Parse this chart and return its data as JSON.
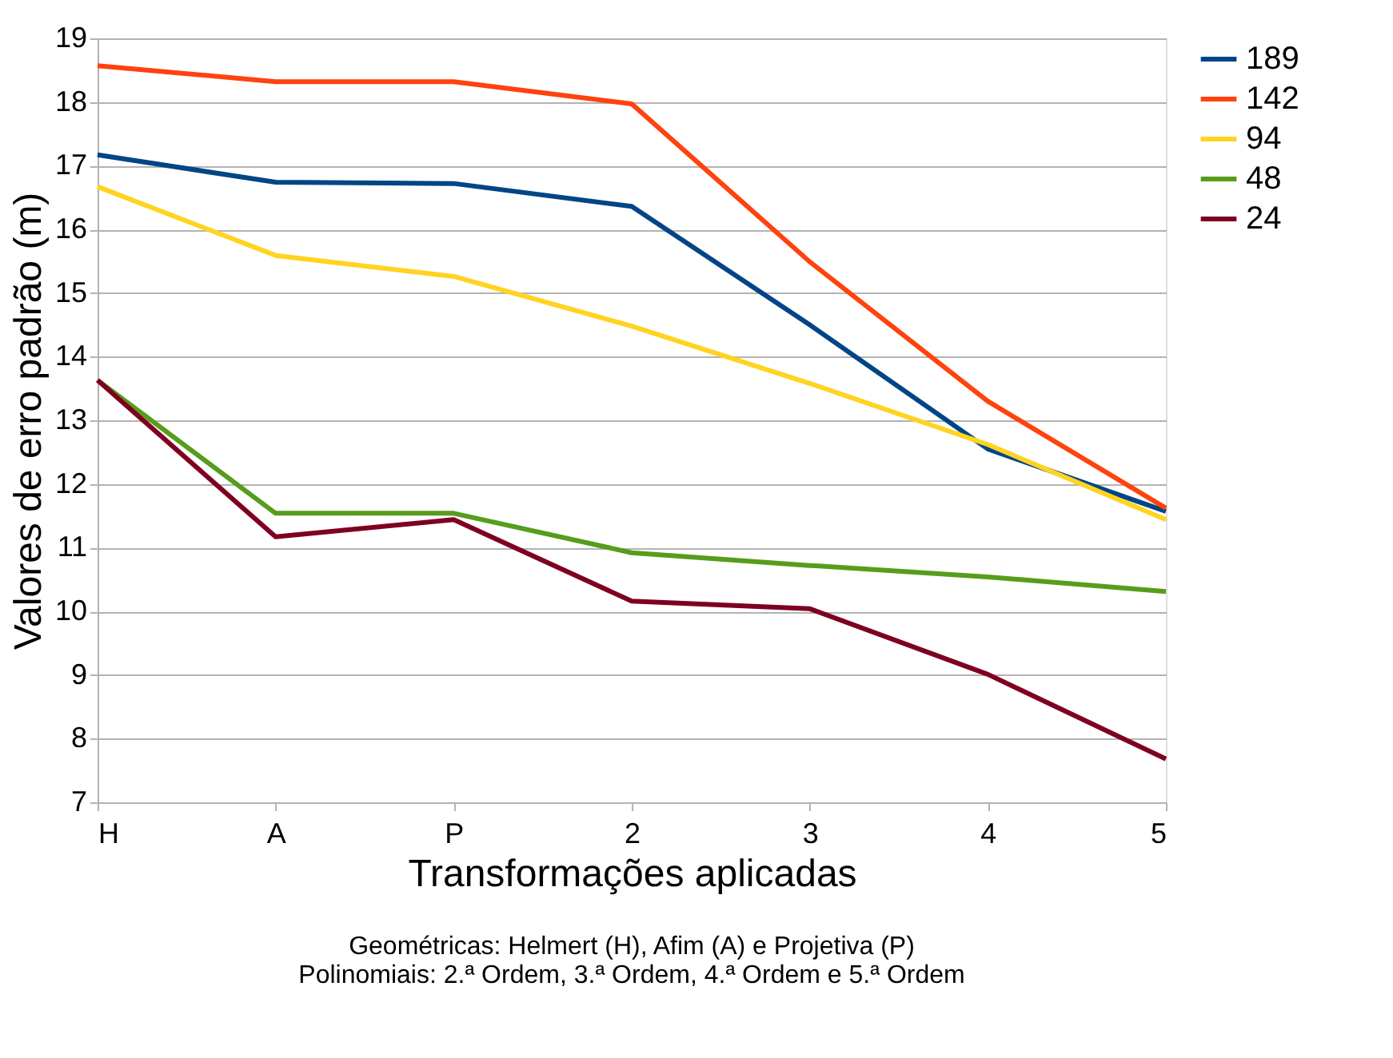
{
  "chart_data": {
    "type": "line",
    "xlabel": "Transformações aplicadas",
    "ylabel": "Valores de erro padrão (m)",
    "categories": [
      "H",
      "A",
      "P",
      "2",
      "3",
      "4",
      "5"
    ],
    "series": [
      {
        "name": "189",
        "color": "#004586",
        "values": [
          17.17,
          16.74,
          16.72,
          16.36,
          14.5,
          12.55,
          11.57
        ]
      },
      {
        "name": "142",
        "color": "#ff420e",
        "values": [
          18.57,
          18.32,
          18.32,
          17.97,
          15.49,
          13.3,
          11.62
        ]
      },
      {
        "name": "94",
        "color": "#ffd320",
        "values": [
          16.67,
          15.59,
          15.26,
          14.48,
          13.58,
          12.62,
          11.44
        ]
      },
      {
        "name": "48",
        "color": "#579d1c",
        "values": [
          13.63,
          11.54,
          11.54,
          10.92,
          10.72,
          10.54,
          10.31
        ]
      },
      {
        "name": "24",
        "color": "#7e0021",
        "values": [
          13.63,
          11.17,
          11.44,
          10.16,
          10.04,
          9.01,
          7.68
        ]
      }
    ],
    "ylim": [
      7,
      19
    ],
    "yticks": [
      7,
      8,
      9,
      10,
      11,
      12,
      13,
      14,
      15,
      16,
      17,
      18,
      19
    ],
    "grid": "y",
    "legend": "right",
    "marker": "none",
    "line_style": "solid",
    "annotations": [
      "Geométricas: Helmert (H), Afim (A) e Projetiva (P)",
      "Polinomiais: 2.ª Ordem, 3.ª Ordem, 4.ª Ordem e 5.ª Ordem"
    ]
  }
}
